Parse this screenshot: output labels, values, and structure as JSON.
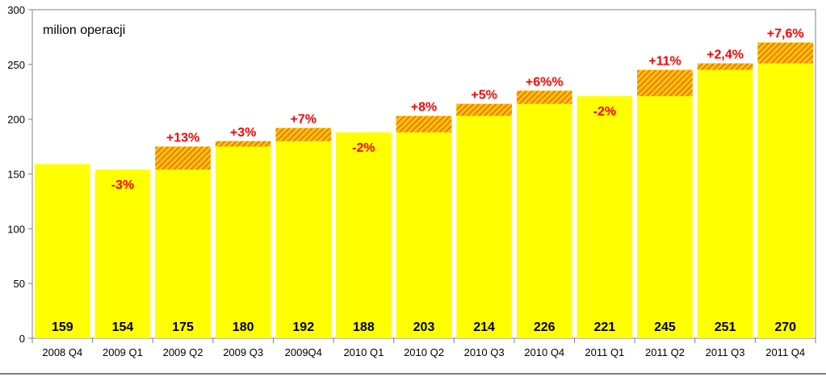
{
  "chart_data": {
    "type": "bar",
    "title": "",
    "unit_label": "milion operacji",
    "categories": [
      "2008 Q4",
      "2009 Q1",
      "2009 Q2",
      "2009 Q3",
      "2009Q4",
      "2010 Q1",
      "2010 Q2",
      "2010 Q3",
      "2010 Q4",
      "2011 Q1",
      "2011 Q2",
      "2011 Q3",
      "2011 Q4"
    ],
    "values": [
      159,
      154,
      175,
      180,
      192,
      188,
      203,
      214,
      226,
      221,
      245,
      251,
      270
    ],
    "value_labels": [
      "159",
      "154",
      "175",
      "180",
      "192",
      "188",
      "203",
      "214",
      "226",
      "221",
      "245",
      "251",
      "270"
    ],
    "change_labels": [
      "",
      "-3%",
      "+13%",
      "+3%",
      "+7%",
      "-2%",
      "+8%",
      "+5%",
      "+6%%",
      "-2%",
      "+11%",
      "+2,4%",
      "+7,6%"
    ],
    "ylim": [
      0,
      300
    ],
    "yticks": [
      0,
      50,
      100,
      150,
      200,
      250,
      300
    ],
    "grid": false,
    "legend": "none",
    "colors": {
      "bar_fill": "#ffff00",
      "increase_hatch_line": "#e36c09",
      "increase_hatch_bg": "#ffc000",
      "change_label": "#ff0000",
      "value_label": "#000000"
    }
  }
}
